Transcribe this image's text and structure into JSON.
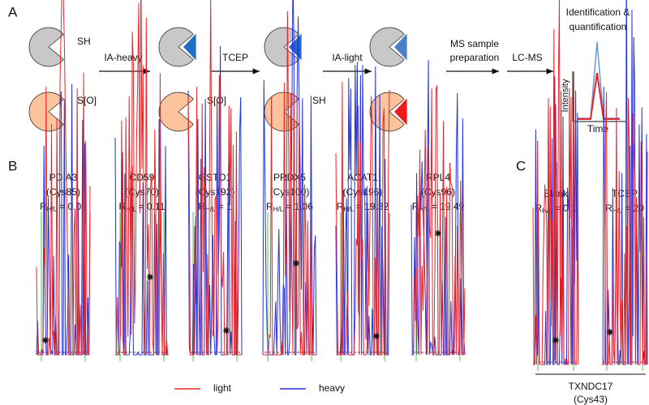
{
  "panel_a": {
    "label": "A",
    "groups": [
      "SH",
      "S[O]",
      "S[O]",
      "SH"
    ],
    "steps": [
      "IA-heavy",
      "TCEP",
      "IA-light",
      "LC-MS"
    ],
    "prep": [
      "MS sample",
      "preparation"
    ],
    "result_title": [
      "Identification &",
      "quantification"
    ],
    "y_axis": "Intensity",
    "x_axis": "Time"
  },
  "panel_b": {
    "label": "B",
    "ratio_symbol": "R",
    "ratio_subscript": "H/L",
    "peptides": [
      {
        "protein": "PDIA3",
        "site": "(Cys85)",
        "ratio": "= 0.03"
      },
      {
        "protein": "CD59",
        "site": "(Cys70)",
        "ratio": "= 0.11"
      },
      {
        "protein": "GSTO1",
        "site": "(Cys192)",
        "ratio": "= 1"
      },
      {
        "protein": "PRDX5",
        "site": "(Cys100)",
        "ratio": "= 1.06"
      },
      {
        "protein": "ACAT1",
        "site": "(Cys196)",
        "ratio": "= 19.32"
      },
      {
        "protein": "RPL4",
        "site": "(Cys96)",
        "ratio": "= 19.49"
      }
    ]
  },
  "legend": [
    {
      "name": "light",
      "color": "#e8262b"
    },
    {
      "name": "heavy",
      "color": "#2433d6"
    }
  ],
  "panel_c": {
    "label": "C",
    "ratio_symbol": "R",
    "ratio_subscript": "H/L",
    "conditions": [
      {
        "name": "Blank",
        "ratio": "= 0.1"
      },
      {
        "name": "TCEP",
        "ratio": "= 20"
      }
    ],
    "protein": "TXNDC17",
    "site": "(Cys43)"
  }
}
